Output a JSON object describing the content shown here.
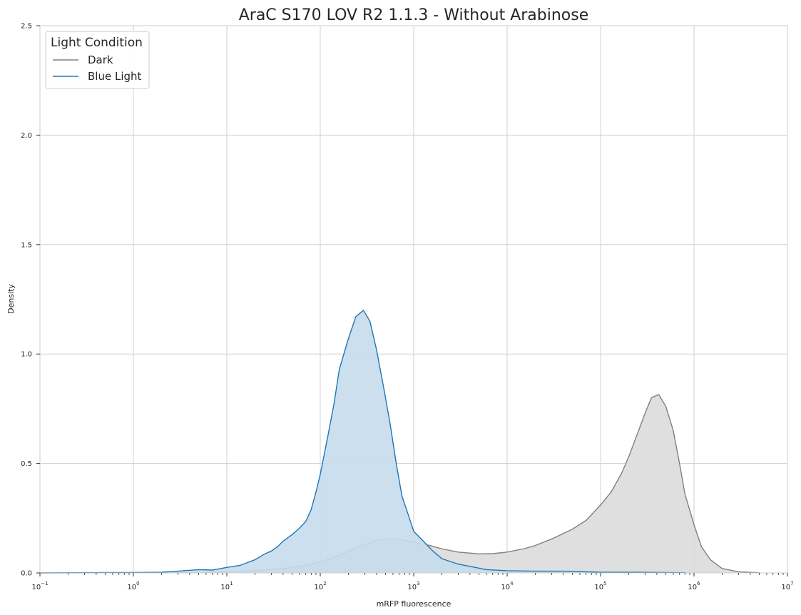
{
  "chart_data": {
    "type": "area",
    "title": "AraC S170 LOV R2 1.1.3 - Without Arabinose",
    "xlabel": "mRFP fluorescence",
    "ylabel": "Density",
    "x_scale": "log",
    "xlim": [
      0.1,
      10000000
    ],
    "ylim": [
      0,
      2.5
    ],
    "grid": true,
    "x_ticks": [
      {
        "base": "10",
        "exp": "−1",
        "value": 0.1
      },
      {
        "base": "10",
        "exp": "0",
        "value": 1
      },
      {
        "base": "10",
        "exp": "1",
        "value": 10
      },
      {
        "base": "10",
        "exp": "2",
        "value": 100
      },
      {
        "base": "10",
        "exp": "3",
        "value": 1000
      },
      {
        "base": "10",
        "exp": "4",
        "value": 10000
      },
      {
        "base": "10",
        "exp": "5",
        "value": 100000
      },
      {
        "base": "10",
        "exp": "6",
        "value": 1000000
      },
      {
        "base": "10",
        "exp": "7",
        "value": 10000000
      }
    ],
    "y_ticks": [
      {
        "label": "0.0",
        "value": 0
      },
      {
        "label": "0.5",
        "value": 0.5
      },
      {
        "label": "1.0",
        "value": 1.0
      },
      {
        "label": "1.5",
        "value": 1.5
      },
      {
        "label": "2.0",
        "value": 2.0
      },
      {
        "label": "2.5",
        "value": 2.5
      }
    ],
    "legend": {
      "title": "Light Condition",
      "position": "top-left",
      "entries": [
        "Dark",
        "Blue Light"
      ]
    },
    "series": [
      {
        "name": "Dark",
        "color": "#808080",
        "fill": "#dcdcdc",
        "points": [
          [
            0.1,
            0
          ],
          [
            1,
            0.0005
          ],
          [
            5,
            0.002
          ],
          [
            10,
            0.006
          ],
          [
            20,
            0.01
          ],
          [
            40,
            0.02
          ],
          [
            70,
            0.035
          ],
          [
            100,
            0.05
          ],
          [
            150,
            0.075
          ],
          [
            200,
            0.1
          ],
          [
            300,
            0.13
          ],
          [
            400,
            0.148
          ],
          [
            550,
            0.155
          ],
          [
            700,
            0.153
          ],
          [
            1000,
            0.14
          ],
          [
            1500,
            0.125
          ],
          [
            2000,
            0.11
          ],
          [
            3000,
            0.095
          ],
          [
            5000,
            0.087
          ],
          [
            7000,
            0.088
          ],
          [
            10000,
            0.095
          ],
          [
            15000,
            0.11
          ],
          [
            20000,
            0.125
          ],
          [
            30000,
            0.155
          ],
          [
            50000,
            0.2
          ],
          [
            70000,
            0.24
          ],
          [
            100000,
            0.31
          ],
          [
            130000,
            0.37
          ],
          [
            170000,
            0.46
          ],
          [
            200000,
            0.53
          ],
          [
            250000,
            0.64
          ],
          [
            300000,
            0.73
          ],
          [
            350000,
            0.8
          ],
          [
            420000,
            0.815
          ],
          [
            500000,
            0.76
          ],
          [
            600000,
            0.65
          ],
          [
            700000,
            0.5
          ],
          [
            800000,
            0.36
          ],
          [
            1000000,
            0.22
          ],
          [
            1200000,
            0.12
          ],
          [
            1500000,
            0.06
          ],
          [
            2000000,
            0.02
          ],
          [
            3000000,
            0.005
          ],
          [
            5000000,
            0.001
          ]
        ]
      },
      {
        "name": "Blue Light",
        "color": "#1f77b4",
        "fill": "#c5dbec",
        "points": [
          [
            0.1,
            0
          ],
          [
            0.5,
            0.002
          ],
          [
            1,
            0.002
          ],
          [
            2,
            0.003
          ],
          [
            3,
            0.008
          ],
          [
            5,
            0.015
          ],
          [
            7,
            0.013
          ],
          [
            10,
            0.025
          ],
          [
            14,
            0.035
          ],
          [
            20,
            0.06
          ],
          [
            25,
            0.085
          ],
          [
            30,
            0.1
          ],
          [
            35,
            0.12
          ],
          [
            40,
            0.145
          ],
          [
            50,
            0.175
          ],
          [
            60,
            0.205
          ],
          [
            70,
            0.235
          ],
          [
            80,
            0.29
          ],
          [
            90,
            0.37
          ],
          [
            100,
            0.45
          ],
          [
            120,
            0.62
          ],
          [
            140,
            0.77
          ],
          [
            160,
            0.93
          ],
          [
            200,
            1.07
          ],
          [
            240,
            1.17
          ],
          [
            290,
            1.2
          ],
          [
            340,
            1.15
          ],
          [
            400,
            1.02
          ],
          [
            480,
            0.84
          ],
          [
            560,
            0.68
          ],
          [
            650,
            0.5
          ],
          [
            750,
            0.35
          ],
          [
            900,
            0.25
          ],
          [
            1000,
            0.19
          ],
          [
            1300,
            0.14
          ],
          [
            1600,
            0.1
          ],
          [
            2000,
            0.065
          ],
          [
            3000,
            0.04
          ],
          [
            4000,
            0.03
          ],
          [
            6000,
            0.015
          ],
          [
            10000,
            0.01
          ],
          [
            20000,
            0.008
          ],
          [
            40000,
            0.008
          ],
          [
            70000,
            0.005
          ],
          [
            100000,
            0.003
          ],
          [
            200000,
            0.003
          ],
          [
            500000,
            0.002
          ],
          [
            800000,
            0.001
          ]
        ]
      }
    ]
  }
}
